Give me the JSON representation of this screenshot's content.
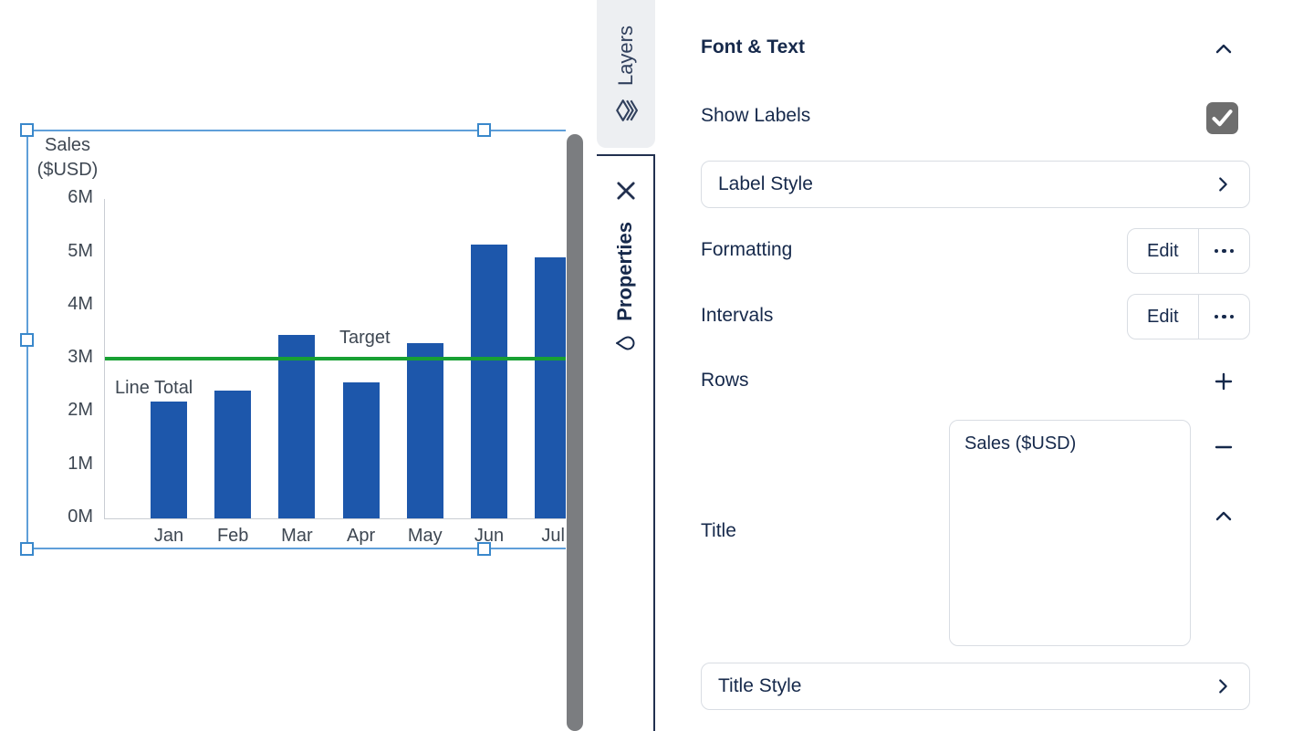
{
  "colors": {
    "bar": "#1d57ab",
    "target": "#18a033",
    "selection": "#5f9fd9",
    "navy": "#16294b",
    "checkbox": "#6e6e6e"
  },
  "chart_data": {
    "type": "bar",
    "title": "Sales ($USD)",
    "title_lines": [
      "Sales",
      "($USD)"
    ],
    "categories": [
      "Jan",
      "Feb",
      "Mar",
      "Apr",
      "May",
      "Jun",
      "Jul"
    ],
    "values": [
      2.2,
      2.4,
      3.45,
      2.55,
      3.3,
      5.15,
      4.9
    ],
    "value_unit": "M",
    "ylabel_ticks": [
      "0M",
      "1M",
      "2M",
      "3M",
      "4M",
      "5M",
      "6M"
    ],
    "ylim": [
      0,
      6
    ],
    "target_line": {
      "value": 3,
      "label": "Target"
    },
    "annotations": [
      "Line Total"
    ],
    "grid": false,
    "legend_position": "none"
  },
  "rail": {
    "layers_label": "Layers",
    "properties_label": "Properties"
  },
  "panel": {
    "section_header": "Font & Text",
    "show_labels": {
      "label": "Show Labels",
      "checked": true
    },
    "label_style": {
      "label": "Label Style"
    },
    "formatting": {
      "label": "Formatting",
      "edit_label": "Edit"
    },
    "intervals": {
      "label": "Intervals",
      "edit_label": "Edit"
    },
    "rows": {
      "label": "Rows"
    },
    "title_field": {
      "label": "Title",
      "value": "Sales ($USD)"
    },
    "title_style": {
      "label": "Title Style"
    }
  }
}
